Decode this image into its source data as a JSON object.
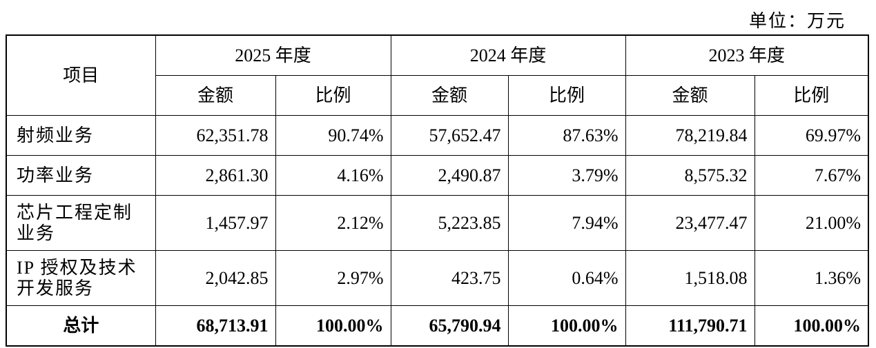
{
  "unit": "单位：万元",
  "table": {
    "header": {
      "item": "项目",
      "periods": [
        {
          "year": "2025 年度",
          "amount": "金额",
          "ratio": "比例"
        },
        {
          "year": "2024 年度",
          "amount": "金额",
          "ratio": "比例"
        },
        {
          "year": "2023 年度",
          "amount": "金额",
          "ratio": "比例"
        }
      ]
    },
    "rows": [
      {
        "name": "射频业务",
        "cells": [
          "62,351.78",
          "90.74%",
          "57,652.47",
          "87.63%",
          "78,219.84",
          "69.97%"
        ]
      },
      {
        "name": "功率业务",
        "cells": [
          "2,861.30",
          "4.16%",
          "2,490.87",
          "3.79%",
          "8,575.32",
          "7.67%"
        ]
      },
      {
        "name": "芯片工程定制业务",
        "cells": [
          "1,457.97",
          "2.12%",
          "5,223.85",
          "7.94%",
          "23,477.47",
          "21.00%"
        ]
      },
      {
        "name": "IP 授权及技术开发服务",
        "cells": [
          "2,042.85",
          "2.97%",
          "423.75",
          "0.64%",
          "1,518.08",
          "1.36%"
        ]
      }
    ],
    "total": {
      "name": "总计",
      "cells": [
        "68,713.91",
        "100.00%",
        "65,790.94",
        "100.00%",
        "111,790.71",
        "100.00%"
      ]
    }
  }
}
